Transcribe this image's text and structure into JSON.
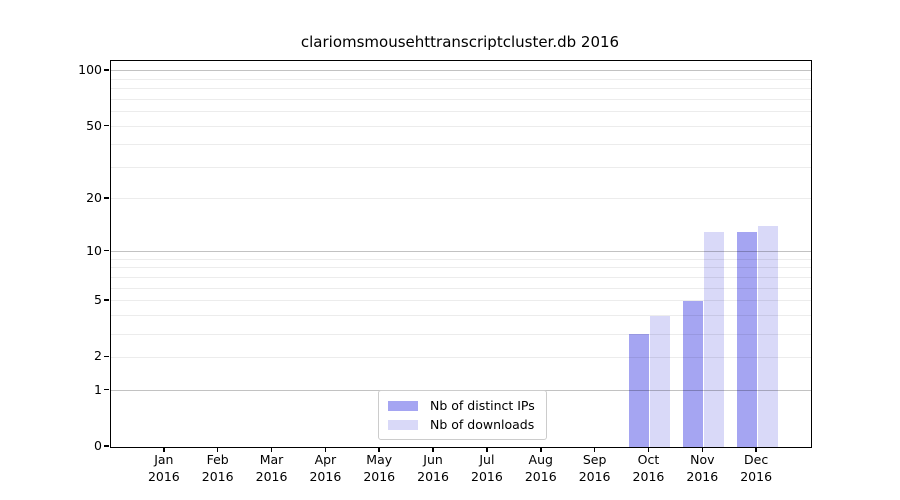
{
  "chart_data": {
    "type": "bar",
    "title": "clariomsmousehttranscriptcluster.db 2016",
    "yscale": "log1p",
    "grid": true,
    "categories": [
      "Jan",
      "Feb",
      "Mar",
      "Apr",
      "May",
      "Jun",
      "Jul",
      "Aug",
      "Sep",
      "Oct",
      "Nov",
      "Dec"
    ],
    "category_year": "2016",
    "series": [
      {
        "name": "Nb of distinct IPs",
        "color": "#a5a5f2",
        "values": [
          0,
          0,
          0,
          0,
          0,
          0,
          0,
          0,
          0,
          3,
          5,
          13
        ]
      },
      {
        "name": "Nb of downloads",
        "color": "#d9d9f8",
        "values": [
          0,
          0,
          0,
          0,
          0,
          0,
          0,
          0,
          0,
          4,
          13,
          14
        ]
      }
    ],
    "ylim": [
      0,
      113
    ],
    "ytick_labels": [
      0,
      1,
      2,
      5,
      10,
      20,
      50,
      100
    ],
    "major_gridlines": [
      1,
      10,
      100
    ],
    "minor_gridlines": [
      2,
      3,
      4,
      5,
      6,
      7,
      8,
      9,
      20,
      30,
      40,
      50,
      60,
      70,
      80,
      90
    ],
    "legend_position": "lower center"
  },
  "legend": {
    "items": [
      {
        "label": "Nb of distinct IPs",
        "color": "#a5a5f2"
      },
      {
        "label": "Nb of downloads",
        "color": "#d9d9f8"
      }
    ]
  }
}
